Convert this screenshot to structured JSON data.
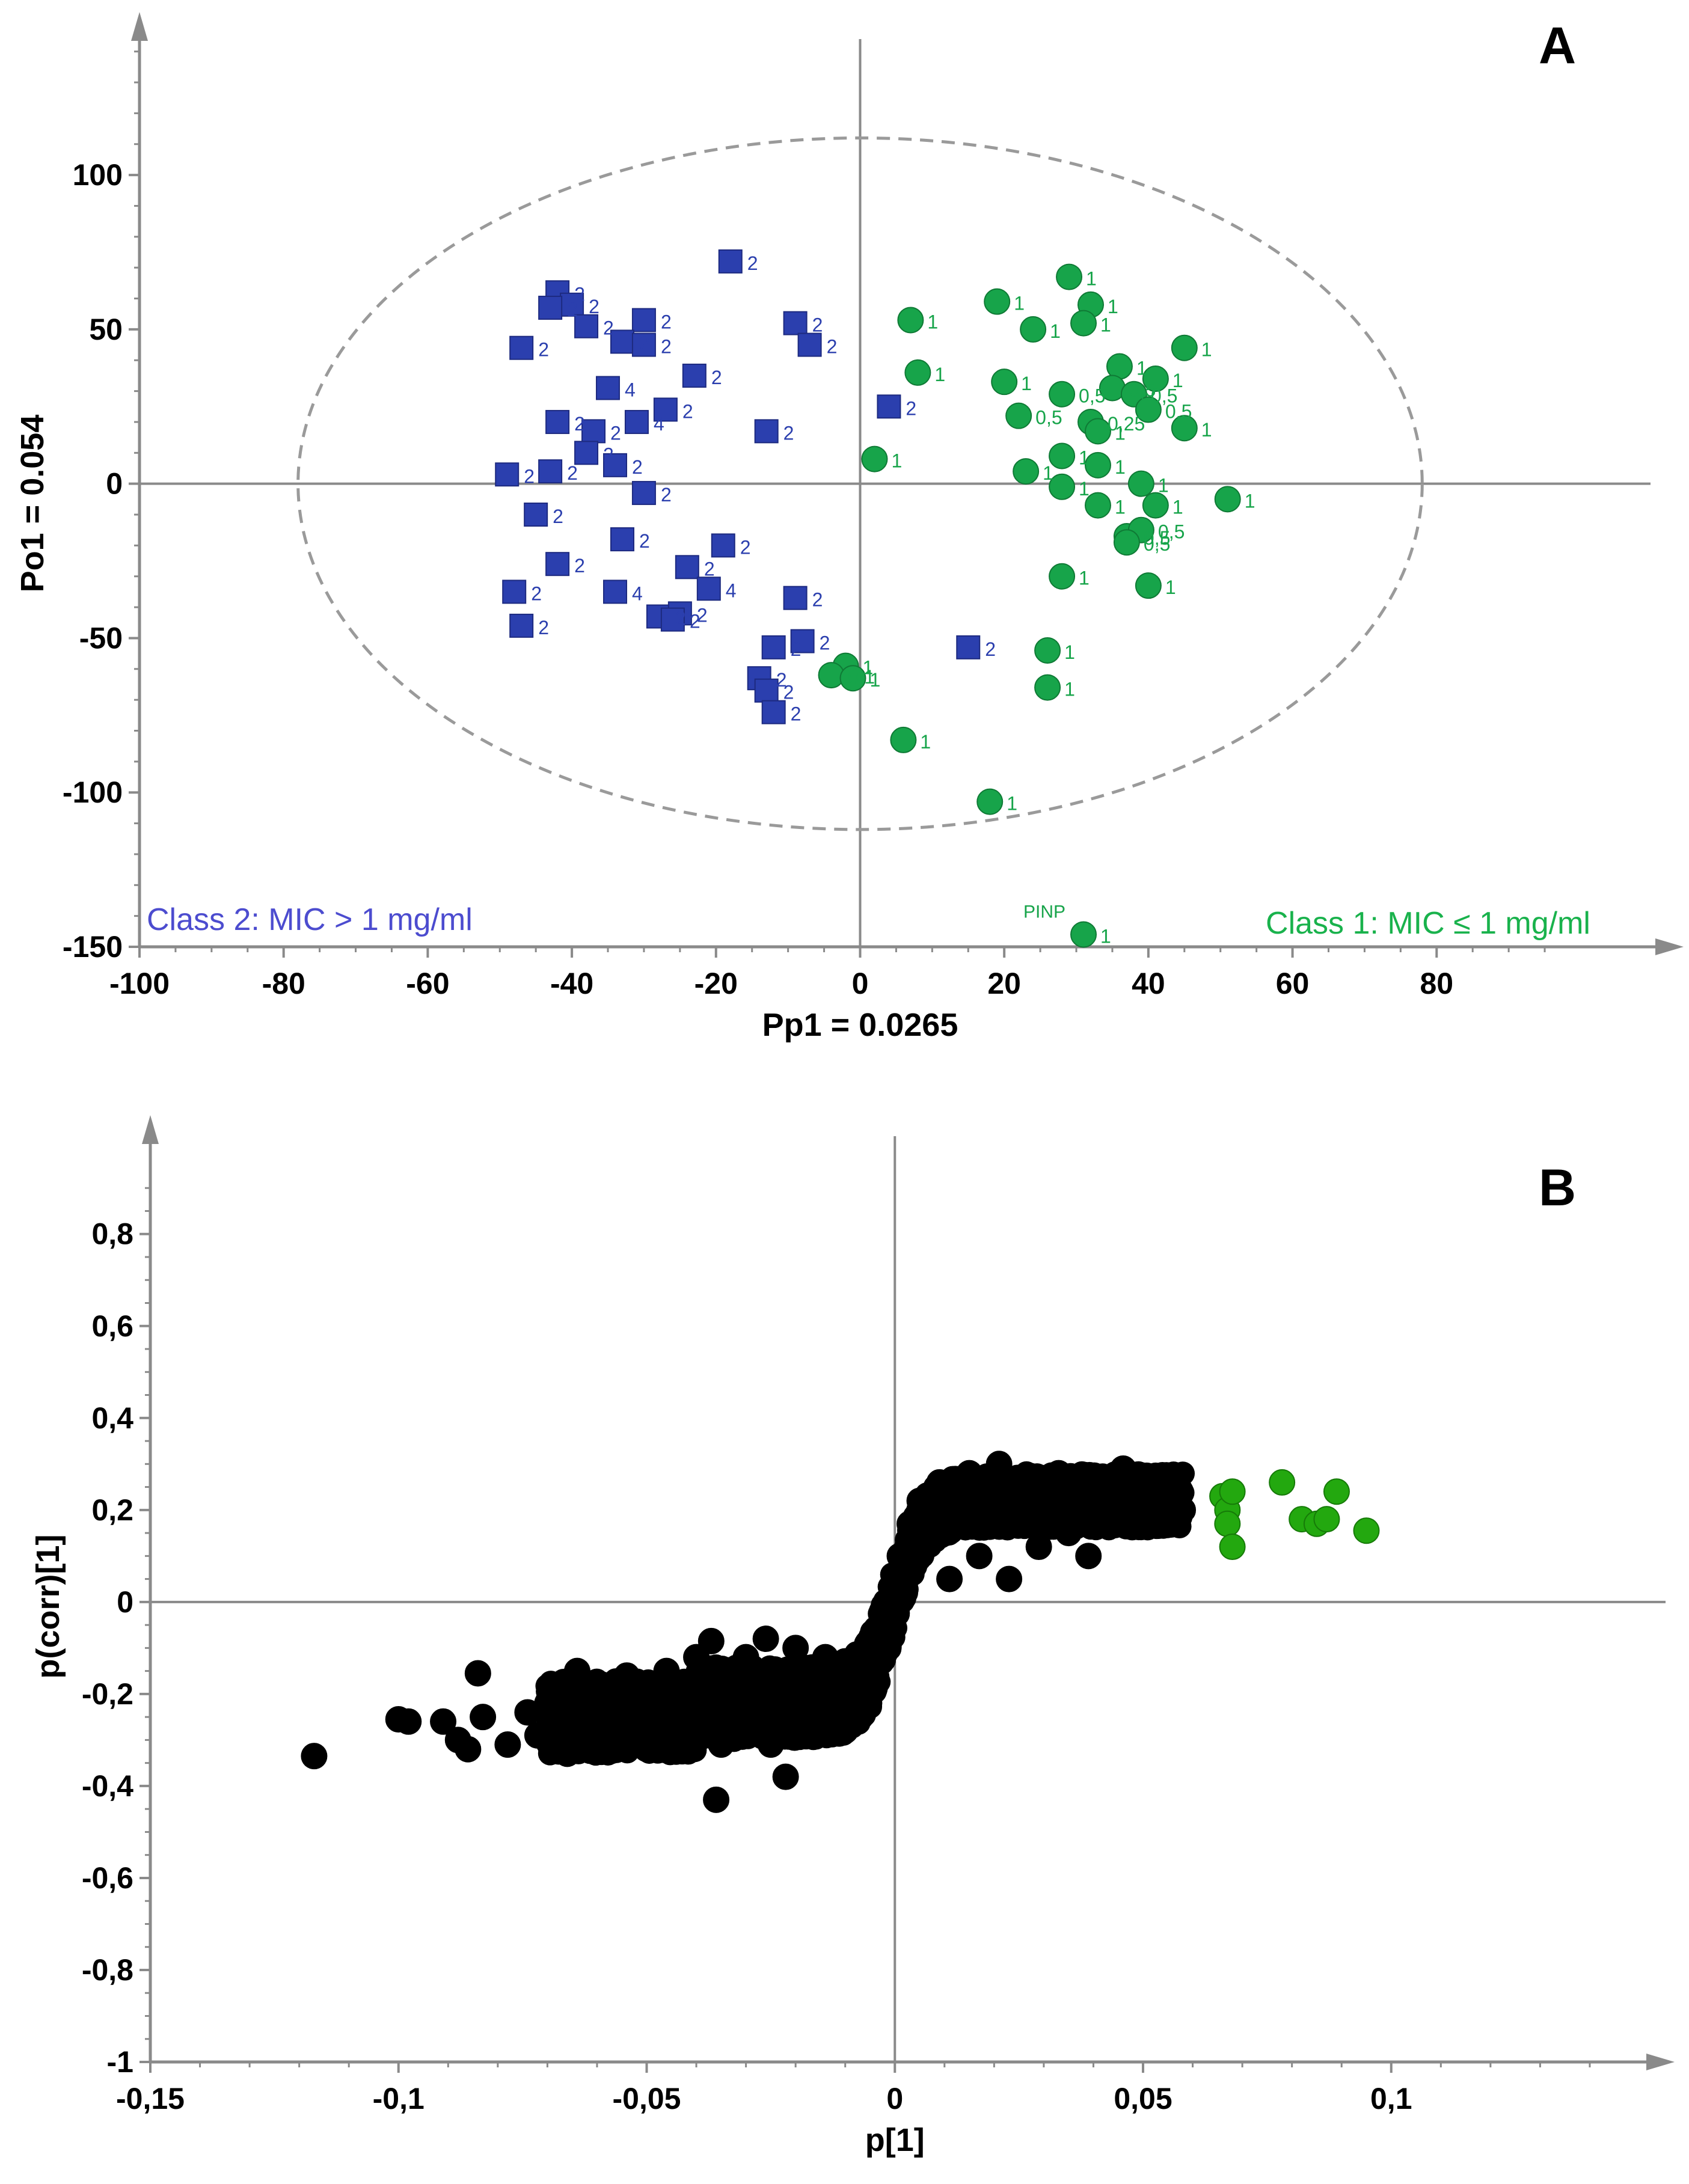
{
  "chart_data": [
    {
      "type": "scatter",
      "panel_label": "A",
      "xlabel": "Pp1 = 0.0265",
      "ylabel": "Po1 = 0.054",
      "xlim": [
        -100,
        98
      ],
      "ylim": [
        -150,
        145
      ],
      "xticks": [
        -100,
        -80,
        -60,
        -40,
        -20,
        0,
        20,
        40,
        60,
        80
      ],
      "yticks": [
        -150,
        -100,
        -50,
        0,
        50,
        100
      ],
      "ellipse": {
        "cx": 0,
        "cy": 0,
        "rx": 78,
        "ry": 112
      },
      "class_labels": [
        {
          "text": "Class 2: MIC > 1 mg/ml",
          "color": "#4c4ccf",
          "anchor": "start"
        },
        {
          "text": "Class 1: MIC ≤ 1 mg/ml",
          "color": "#19b24c",
          "anchor": "end"
        }
      ],
      "colors": {
        "class2": "#2b3fae",
        "class1": "#17a44a"
      },
      "series": [
        {
          "marker": "square",
          "color": "#2b3fae",
          "points": [
            [
              -18,
              72,
              "2"
            ],
            [
              -42,
              62,
              "2"
            ],
            [
              -40,
              58,
              "2"
            ],
            [
              -43,
              57,
              "2"
            ],
            [
              -38,
              51,
              "2"
            ],
            [
              -30,
              53,
              "2"
            ],
            [
              -33,
              46,
              "2"
            ],
            [
              -30,
              45,
              "2"
            ],
            [
              -47,
              44,
              "2"
            ],
            [
              -9,
              52,
              "2"
            ],
            [
              -7,
              45,
              "2"
            ],
            [
              -23,
              35,
              "2"
            ],
            [
              -35,
              31,
              "4"
            ],
            [
              -27,
              24,
              "2"
            ],
            [
              -42,
              20,
              "2"
            ],
            [
              -31,
              20,
              "4"
            ],
            [
              -13,
              17,
              "2"
            ],
            [
              -37,
              17,
              "2"
            ],
            [
              -38,
              10,
              "2"
            ],
            [
              -34,
              6,
              "2"
            ],
            [
              -49,
              3,
              "2"
            ],
            [
              -43,
              4,
              "2"
            ],
            [
              -30,
              -3,
              "2"
            ],
            [
              -45,
              -10,
              "2"
            ],
            [
              -33,
              -18,
              "2"
            ],
            [
              -19,
              -20,
              "2"
            ],
            [
              -42,
              -26,
              "2"
            ],
            [
              -24,
              -27,
              "2"
            ],
            [
              -48,
              -35,
              "2"
            ],
            [
              -34,
              -35,
              "4"
            ],
            [
              -21,
              -34,
              "4"
            ],
            [
              -9,
              -37,
              "2"
            ],
            [
              -28,
              -43,
              "2"
            ],
            [
              -25,
              -42,
              "2"
            ],
            [
              -26,
              -44,
              "2"
            ],
            [
              -47,
              -46,
              "2"
            ],
            [
              -8,
              -51,
              "2"
            ],
            [
              -12,
              -53,
              "2"
            ],
            [
              -14,
              -63,
              "2"
            ],
            [
              -13,
              -67,
              "2"
            ],
            [
              -12,
              -74,
              "2"
            ],
            [
              15,
              -53,
              "2"
            ],
            [
              4,
              25,
              "2"
            ]
          ]
        },
        {
          "marker": "circle",
          "color": "#17a44a",
          "points": [
            [
              29,
              67,
              "1"
            ],
            [
              19,
              59,
              "1"
            ],
            [
              32,
              58,
              "1"
            ],
            [
              31,
              52,
              "1"
            ],
            [
              24,
              50,
              "1"
            ],
            [
              7,
              53,
              "1"
            ],
            [
              45,
              44,
              "1"
            ],
            [
              8,
              36,
              "1"
            ],
            [
              20,
              33,
              "1"
            ],
            [
              36,
              38,
              "1"
            ],
            [
              41,
              34,
              "1"
            ],
            [
              28,
              29,
              "0,5"
            ],
            [
              35,
              31,
              "0,5"
            ],
            [
              38,
              29,
              "0,5"
            ],
            [
              22,
              22,
              "0,5"
            ],
            [
              32,
              20,
              "0,25"
            ],
            [
              40,
              24,
              "0,5"
            ],
            [
              33,
              17,
              "1"
            ],
            [
              45,
              18,
              "1"
            ],
            [
              2,
              8,
              "1"
            ],
            [
              28,
              9,
              "1"
            ],
            [
              33,
              6,
              "1"
            ],
            [
              23,
              4,
              "1"
            ],
            [
              28,
              -1,
              "1"
            ],
            [
              39,
              0,
              "1"
            ],
            [
              33,
              -7,
              "1"
            ],
            [
              41,
              -7,
              "1"
            ],
            [
              51,
              -5,
              "1"
            ],
            [
              37,
              -17,
              "0,5"
            ],
            [
              39,
              -15,
              "0,5"
            ],
            [
              37,
              -19,
              "0,5"
            ],
            [
              28,
              -30,
              "1"
            ],
            [
              40,
              -33,
              "1"
            ],
            [
              26,
              -54,
              "1"
            ],
            [
              26,
              -66,
              "1"
            ],
            [
              -2,
              -59,
              "1"
            ],
            [
              -4,
              -62,
              "0,1"
            ],
            [
              -1,
              -63,
              "1"
            ],
            [
              6,
              -83,
              "1"
            ],
            [
              18,
              -103,
              "1"
            ],
            [
              31,
              -146,
              "1"
            ]
          ]
        }
      ],
      "annotations": [
        {
          "text": "PINP",
          "x": 31,
          "y": -146
        }
      ]
    },
    {
      "type": "scatter",
      "panel_label": "B",
      "xlabel": "p[1]",
      "ylabel": "p(corr)[1]",
      "xlim": [
        -0.15,
        0.148
      ],
      "ylim": [
        -1,
        0.98
      ],
      "xticks": [
        -0.15,
        -0.1,
        -0.05,
        0,
        0.05,
        0.1
      ],
      "xtick_labels": [
        "-0,15",
        "-0,1",
        "-0,05",
        "0",
        "0,05",
        "0,1"
      ],
      "yticks": [
        -1,
        -0.8,
        -0.6,
        -0.4,
        -0.2,
        0,
        0.2,
        0.4,
        0.6,
        0.8
      ],
      "ytick_labels": [
        "-1",
        "-0,8",
        "-0,6",
        "-0,4",
        "-0,2",
        "0",
        "0,2",
        "0,4",
        "0,6",
        "0,8"
      ],
      "colors": {
        "bulk": "#000000",
        "highlight": "#23a80f"
      },
      "series": [
        {
          "color": "#000000",
          "points": [
            [
              -0.117,
              -0.335
            ],
            [
              -0.1,
              -0.255
            ],
            [
              -0.098,
              -0.26
            ],
            [
              -0.091,
              -0.26
            ],
            [
              -0.088,
              -0.3
            ],
            [
              -0.086,
              -0.32
            ],
            [
              -0.084,
              -0.155
            ],
            [
              -0.083,
              -0.25
            ],
            [
              -0.078,
              -0.31
            ],
            [
              -0.074,
              -0.24
            ],
            [
              -0.072,
              -0.29
            ],
            [
              -0.07,
              -0.22
            ],
            [
              -0.068,
              -0.31
            ],
            [
              -0.066,
              -0.33
            ],
            [
              -0.064,
              -0.15
            ],
            [
              -0.062,
              -0.26
            ],
            [
              -0.06,
              -0.2
            ],
            [
              -0.058,
              -0.23
            ],
            [
              -0.056,
              -0.29
            ],
            [
              -0.054,
              -0.16
            ],
            [
              -0.052,
              -0.28
            ],
            [
              -0.05,
              -0.2
            ],
            [
              -0.048,
              -0.29
            ],
            [
              -0.046,
              -0.15
            ],
            [
              -0.045,
              -0.24
            ],
            [
              -0.043,
              -0.3
            ],
            [
              -0.041,
              -0.2
            ],
            [
              -0.04,
              -0.12
            ],
            [
              -0.038,
              -0.26
            ],
            [
              -0.037,
              -0.085
            ],
            [
              -0.036,
              -0.43
            ],
            [
              -0.035,
              -0.31
            ],
            [
              -0.033,
              -0.18
            ],
            [
              -0.031,
              -0.28
            ],
            [
              -0.03,
              -0.12
            ],
            [
              -0.028,
              -0.23
            ],
            [
              -0.026,
              -0.08
            ],
            [
              -0.025,
              -0.31
            ],
            [
              -0.023,
              -0.16
            ],
            [
              -0.022,
              -0.38
            ],
            [
              -0.021,
              -0.27
            ],
            [
              -0.02,
              -0.1
            ],
            [
              -0.018,
              -0.21
            ],
            [
              -0.016,
              -0.28
            ],
            [
              -0.014,
              -0.12
            ],
            [
              -0.012,
              -0.22
            ],
            [
              -0.01,
              -0.28
            ],
            [
              -0.008,
              -0.16
            ],
            [
              -0.006,
              -0.2
            ],
            [
              -0.004,
              -0.1
            ],
            [
              -0.002,
              -0.05
            ],
            [
              0,
              0.03
            ],
            [
              0.001,
              0.1
            ],
            [
              0.003,
              0.17
            ],
            [
              0.005,
              0.22
            ],
            [
              0.007,
              0.14
            ],
            [
              0.009,
              0.26
            ],
            [
              0.011,
              0.05
            ],
            [
              0.013,
              0.2
            ],
            [
              0.015,
              0.28
            ],
            [
              0.017,
              0.1
            ],
            [
              0.019,
              0.24
            ],
            [
              0.021,
              0.3
            ],
            [
              0.023,
              0.05
            ],
            [
              0.025,
              0.18
            ],
            [
              0.027,
              0.27
            ],
            [
              0.029,
              0.12
            ],
            [
              0.031,
              0.22
            ],
            [
              0.033,
              0.28
            ],
            [
              0.035,
              0.15
            ],
            [
              0.037,
              0.25
            ],
            [
              0.039,
              0.1
            ],
            [
              0.041,
              0.2
            ],
            [
              0.043,
              0.27
            ],
            [
              0.045,
              0.17
            ],
            [
              0.046,
              0.29
            ],
            [
              0.048,
              0.23
            ],
            [
              0.05,
              0.19
            ],
            [
              0.052,
              0.24
            ],
            [
              0.054,
              0.21
            ],
            [
              0.055,
              0.19
            ],
            [
              0.057,
              0.22
            ],
            [
              0.058,
              0.2
            ]
          ]
        },
        {
          "color": "#23a80f",
          "points": [
            [
              0.066,
              0.23
            ],
            [
              0.067,
              0.2
            ],
            [
              0.067,
              0.17
            ],
            [
              0.068,
              0.12
            ],
            [
              0.068,
              0.24
            ],
            [
              0.078,
              0.26
            ],
            [
              0.082,
              0.18
            ],
            [
              0.085,
              0.17
            ],
            [
              0.087,
              0.18
            ],
            [
              0.089,
              0.24
            ],
            [
              0.095,
              0.155
            ]
          ]
        }
      ]
    }
  ]
}
